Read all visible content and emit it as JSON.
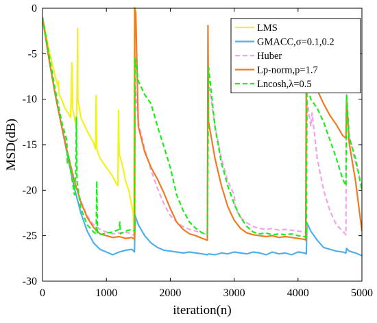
{
  "chart_data": {
    "type": "line",
    "xlabel": "iteration(n)",
    "ylabel": "MSD(dB)",
    "xlim": [
      0,
      5000
    ],
    "ylim": [
      -30,
      0
    ],
    "xticks": [
      0,
      1000,
      2000,
      3000,
      4000,
      5000
    ],
    "yticks": [
      0,
      -5,
      -10,
      -15,
      -20,
      -25,
      -30
    ],
    "grid": false,
    "legend_position": "top-right",
    "series": [
      {
        "name": "LMS",
        "color": "#f2f21c",
        "dash": "solid",
        "points": [
          [
            0,
            -1
          ],
          [
            100,
            -4.5
          ],
          [
            200,
            -7.5
          ],
          [
            240,
            -8.5
          ],
          [
            250,
            -8
          ],
          [
            260,
            -9.5
          ],
          [
            300,
            -10
          ],
          [
            350,
            -11
          ],
          [
            400,
            -11.5
          ],
          [
            440,
            -12
          ],
          [
            460,
            -6
          ],
          [
            470,
            -11
          ],
          [
            500,
            -12
          ],
          [
            530,
            -13
          ],
          [
            540,
            -10
          ],
          [
            550,
            -2.2
          ],
          [
            555,
            -10
          ],
          [
            600,
            -12
          ],
          [
            700,
            -13.5
          ],
          [
            800,
            -14.8
          ],
          [
            830,
            -15.5
          ],
          [
            840,
            -9.6
          ],
          [
            850,
            -15.5
          ],
          [
            900,
            -16.5
          ],
          [
            1000,
            -17.5
          ],
          [
            1100,
            -18.5
          ],
          [
            1150,
            -19.2
          ],
          [
            1180,
            -19.5
          ],
          [
            1190,
            -11.2
          ],
          [
            1200,
            -16
          ],
          [
            1250,
            -17.2
          ],
          [
            1300,
            -19
          ],
          [
            1350,
            -20
          ],
          [
            1420,
            -22.5
          ],
          [
            1430,
            -24.8
          ],
          [
            1440,
            0.3
          ],
          [
            1450,
            -25
          ]
        ]
      },
      {
        "name": "GMACC,σ=0.1,0.2",
        "color": "#4db0e8",
        "dash": "solid",
        "points": [
          [
            0,
            -1
          ],
          [
            100,
            -5.5
          ],
          [
            200,
            -9.5
          ],
          [
            300,
            -13
          ],
          [
            400,
            -16.5
          ],
          [
            500,
            -19.8
          ],
          [
            600,
            -22.5
          ],
          [
            700,
            -24.5
          ],
          [
            800,
            -25.8
          ],
          [
            900,
            -26.5
          ],
          [
            1000,
            -26.8
          ],
          [
            1100,
            -27.1
          ],
          [
            1200,
            -26.8
          ],
          [
            1300,
            -26.6
          ],
          [
            1400,
            -26.5
          ],
          [
            1440,
            -26.8
          ],
          [
            1450,
            -22.8
          ],
          [
            1500,
            -23.8
          ],
          [
            1600,
            -25
          ],
          [
            1700,
            -25.8
          ],
          [
            1800,
            -26.3
          ],
          [
            1900,
            -26.6
          ],
          [
            2000,
            -26.7
          ],
          [
            2100,
            -26.8
          ],
          [
            2200,
            -26.9
          ],
          [
            2300,
            -26.8
          ],
          [
            2400,
            -26.9
          ],
          [
            2500,
            -27
          ],
          [
            2580,
            -27.1
          ],
          [
            2600,
            -27
          ],
          [
            2700,
            -27.1
          ],
          [
            2800,
            -26.9
          ],
          [
            2900,
            -27
          ],
          [
            3000,
            -26.8
          ],
          [
            3100,
            -26.9
          ],
          [
            3200,
            -27
          ],
          [
            3300,
            -26.8
          ],
          [
            3400,
            -26.9
          ],
          [
            3500,
            -27.1
          ],
          [
            3600,
            -26.8
          ],
          [
            3700,
            -27
          ],
          [
            3800,
            -26.9
          ],
          [
            3900,
            -27.1
          ],
          [
            4000,
            -26.8
          ],
          [
            4100,
            -26.9
          ],
          [
            4130,
            -27
          ],
          [
            4140,
            -23.6
          ],
          [
            4200,
            -24.5
          ],
          [
            4300,
            -25.5
          ],
          [
            4400,
            -26.3
          ],
          [
            4500,
            -26.5
          ],
          [
            4600,
            -26.7
          ],
          [
            4700,
            -26.8
          ],
          [
            4750,
            -26.9
          ],
          [
            4760,
            -26.4
          ],
          [
            4800,
            -26.7
          ],
          [
            4900,
            -26.9
          ],
          [
            5000,
            -27.2
          ]
        ]
      },
      {
        "name": "Huber",
        "color": "#f2a3ea",
        "dash": "dashed",
        "points": [
          [
            0,
            -1
          ],
          [
            100,
            -5
          ],
          [
            200,
            -9
          ],
          [
            300,
            -12.5
          ],
          [
            400,
            -16
          ],
          [
            500,
            -19
          ],
          [
            600,
            -21.2
          ],
          [
            700,
            -22.8
          ],
          [
            800,
            -23.8
          ],
          [
            900,
            -24.3
          ],
          [
            1000,
            -24.6
          ],
          [
            1100,
            -24.8
          ],
          [
            1200,
            -24.7
          ],
          [
            1300,
            -24.6
          ],
          [
            1400,
            -24.8
          ],
          [
            1440,
            -25
          ],
          [
            1450,
            -8.5
          ],
          [
            1500,
            -12.5
          ],
          [
            1600,
            -15.5
          ],
          [
            1700,
            -17.8
          ],
          [
            1800,
            -19.8
          ],
          [
            1900,
            -21.5
          ],
          [
            2000,
            -22.8
          ],
          [
            2100,
            -23.5
          ],
          [
            2200,
            -24
          ],
          [
            2300,
            -24.3
          ],
          [
            2400,
            -24.5
          ],
          [
            2500,
            -24.7
          ],
          [
            2580,
            -24.9
          ],
          [
            2600,
            -8
          ],
          [
            2700,
            -13
          ],
          [
            2800,
            -16.5
          ],
          [
            2900,
            -19
          ],
          [
            3000,
            -20.5
          ],
          [
            3020,
            -22
          ],
          [
            3100,
            -23
          ],
          [
            3200,
            -23.6
          ],
          [
            3300,
            -24
          ],
          [
            3400,
            -24.2
          ],
          [
            3500,
            -24.3
          ],
          [
            3600,
            -24.2
          ],
          [
            3700,
            -24.4
          ],
          [
            3800,
            -24.3
          ],
          [
            3900,
            -24.4
          ],
          [
            4000,
            -24.5
          ],
          [
            4100,
            -24.6
          ],
          [
            4130,
            -24.7
          ],
          [
            4140,
            -10
          ],
          [
            4200,
            -13
          ],
          [
            4220,
            -11.5
          ],
          [
            4300,
            -16.5
          ],
          [
            4400,
            -20
          ],
          [
            4500,
            -22.3
          ],
          [
            4600,
            -23.8
          ],
          [
            4700,
            -24.5
          ],
          [
            4750,
            -24.9
          ],
          [
            4760,
            -9.5
          ],
          [
            4800,
            -14
          ],
          [
            4900,
            -17
          ],
          [
            5000,
            -19.5
          ]
        ]
      },
      {
        "name": "Lp-norm,p=1.7",
        "color": "#ef7b22",
        "dash": "solid",
        "points": [
          [
            0,
            -1
          ],
          [
            100,
            -5.5
          ],
          [
            200,
            -9.5
          ],
          [
            300,
            -13
          ],
          [
            400,
            -16.2
          ],
          [
            500,
            -19
          ],
          [
            600,
            -21.3
          ],
          [
            700,
            -23
          ],
          [
            800,
            -24.1
          ],
          [
            900,
            -24.8
          ],
          [
            1000,
            -25
          ],
          [
            1100,
            -25.2
          ],
          [
            1200,
            -25.1
          ],
          [
            1300,
            -25.3
          ],
          [
            1400,
            -25.2
          ],
          [
            1440,
            -25.4
          ],
          [
            1445,
            0
          ],
          [
            1460,
            -0.5
          ],
          [
            1500,
            -13
          ],
          [
            1600,
            -15.8
          ],
          [
            1700,
            -17.5
          ],
          [
            1800,
            -18.8
          ],
          [
            1900,
            -20.3
          ],
          [
            2000,
            -22
          ],
          [
            2100,
            -23.5
          ],
          [
            2200,
            -24.3
          ],
          [
            2300,
            -24.8
          ],
          [
            2400,
            -25
          ],
          [
            2500,
            -25.3
          ],
          [
            2580,
            -25.5
          ],
          [
            2590,
            -1.9
          ],
          [
            2600,
            -12.5
          ],
          [
            2700,
            -16.5
          ],
          [
            2800,
            -19.5
          ],
          [
            2900,
            -21.8
          ],
          [
            3000,
            -23.3
          ],
          [
            3100,
            -24.2
          ],
          [
            3200,
            -24.7
          ],
          [
            3300,
            -24.9
          ],
          [
            3400,
            -25
          ],
          [
            3500,
            -25.1
          ],
          [
            3600,
            -25
          ],
          [
            3700,
            -25.2
          ],
          [
            3800,
            -25.1
          ],
          [
            3900,
            -25.2
          ],
          [
            4000,
            -25.3
          ],
          [
            4100,
            -25.4
          ],
          [
            4120,
            -25.5
          ],
          [
            4130,
            -5.5
          ],
          [
            4200,
            -7.2
          ],
          [
            4300,
            -9
          ],
          [
            4400,
            -10.5
          ],
          [
            4500,
            -11.8
          ],
          [
            4600,
            -12.8
          ],
          [
            4700,
            -14
          ],
          [
            4750,
            -14.3
          ],
          [
            4760,
            -10
          ],
          [
            4800,
            -14.8
          ],
          [
            4900,
            -19
          ],
          [
            5000,
            -24.5
          ]
        ]
      },
      {
        "name": "Lncosh,λ=0.5",
        "color": "#19f019",
        "dash": "dashed",
        "points": [
          [
            0,
            -1
          ],
          [
            100,
            -5
          ],
          [
            200,
            -9
          ],
          [
            300,
            -12.5
          ],
          [
            380,
            -14.5
          ],
          [
            390,
            -17
          ],
          [
            400,
            -16
          ],
          [
            500,
            -20.5
          ],
          [
            520,
            -18
          ],
          [
            530,
            -12
          ],
          [
            540,
            -19
          ],
          [
            600,
            -22
          ],
          [
            700,
            -23.8
          ],
          [
            800,
            -24.6
          ],
          [
            840,
            -24.8
          ],
          [
            850,
            -19
          ],
          [
            860,
            -24.7
          ],
          [
            900,
            -24.9
          ],
          [
            1000,
            -24.7
          ],
          [
            1100,
            -24.6
          ],
          [
            1200,
            -24.3
          ],
          [
            1210,
            -23.5
          ],
          [
            1220,
            -24.8
          ],
          [
            1300,
            -24.5
          ],
          [
            1400,
            -24.3
          ],
          [
            1440,
            -24.5
          ],
          [
            1450,
            -5.5
          ],
          [
            1500,
            -8
          ],
          [
            1600,
            -9.5
          ],
          [
            1700,
            -10.5
          ],
          [
            1800,
            -13
          ],
          [
            1900,
            -15.2
          ],
          [
            2000,
            -17.5
          ],
          [
            2100,
            -20.5
          ],
          [
            2200,
            -22.2
          ],
          [
            2300,
            -23.5
          ],
          [
            2400,
            -24.2
          ],
          [
            2500,
            -24.7
          ],
          [
            2580,
            -24.8
          ],
          [
            2600,
            -6.5
          ],
          [
            2700,
            -13
          ],
          [
            2800,
            -17
          ],
          [
            2900,
            -19.5
          ],
          [
            3000,
            -21.5
          ],
          [
            3100,
            -23
          ],
          [
            3200,
            -24
          ],
          [
            3300,
            -24.6
          ],
          [
            3400,
            -24.8
          ],
          [
            3500,
            -24.7
          ],
          [
            3600,
            -24.9
          ],
          [
            3700,
            -24.8
          ],
          [
            3800,
            -24.9
          ],
          [
            3900,
            -24.8
          ],
          [
            4000,
            -25
          ],
          [
            4100,
            -25.1
          ],
          [
            4130,
            -25.2
          ],
          [
            4140,
            -8.5
          ],
          [
            4200,
            -10
          ],
          [
            4300,
            -11
          ],
          [
            4400,
            -12.5
          ],
          [
            4500,
            -14.5
          ],
          [
            4600,
            -16.5
          ],
          [
            4700,
            -18.8
          ],
          [
            4750,
            -19.5
          ],
          [
            4760,
            -9.5
          ],
          [
            4800,
            -14.2
          ],
          [
            4900,
            -16.5
          ],
          [
            5000,
            -20
          ]
        ]
      }
    ]
  }
}
